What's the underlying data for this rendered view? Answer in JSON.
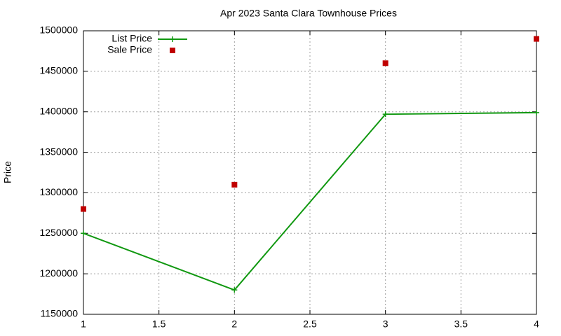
{
  "chart_data": {
    "type": "line",
    "title": "Apr 2023 Santa Clara Townhouse Prices",
    "y_label": "Price",
    "x": [
      1,
      2,
      3,
      4
    ],
    "series": [
      {
        "name": "List Price",
        "color": "#109810",
        "style": "linespoints",
        "values": [
          1250000,
          1180000,
          1397000,
          1399000
        ]
      },
      {
        "name": "Sale Price",
        "color": "#c00000",
        "style": "points",
        "values": [
          1280000,
          1310000,
          1460000,
          1490000
        ]
      }
    ],
    "xlim": [
      1,
      4
    ],
    "xticks": [
      1,
      1.5,
      2,
      2.5,
      3,
      3.5,
      4
    ],
    "ylim": [
      1150000,
      1500000
    ],
    "yticks": [
      1150000,
      1200000,
      1250000,
      1300000,
      1350000,
      1400000,
      1450000,
      1500000
    ],
    "grid": true,
    "legend": "top-left"
  }
}
